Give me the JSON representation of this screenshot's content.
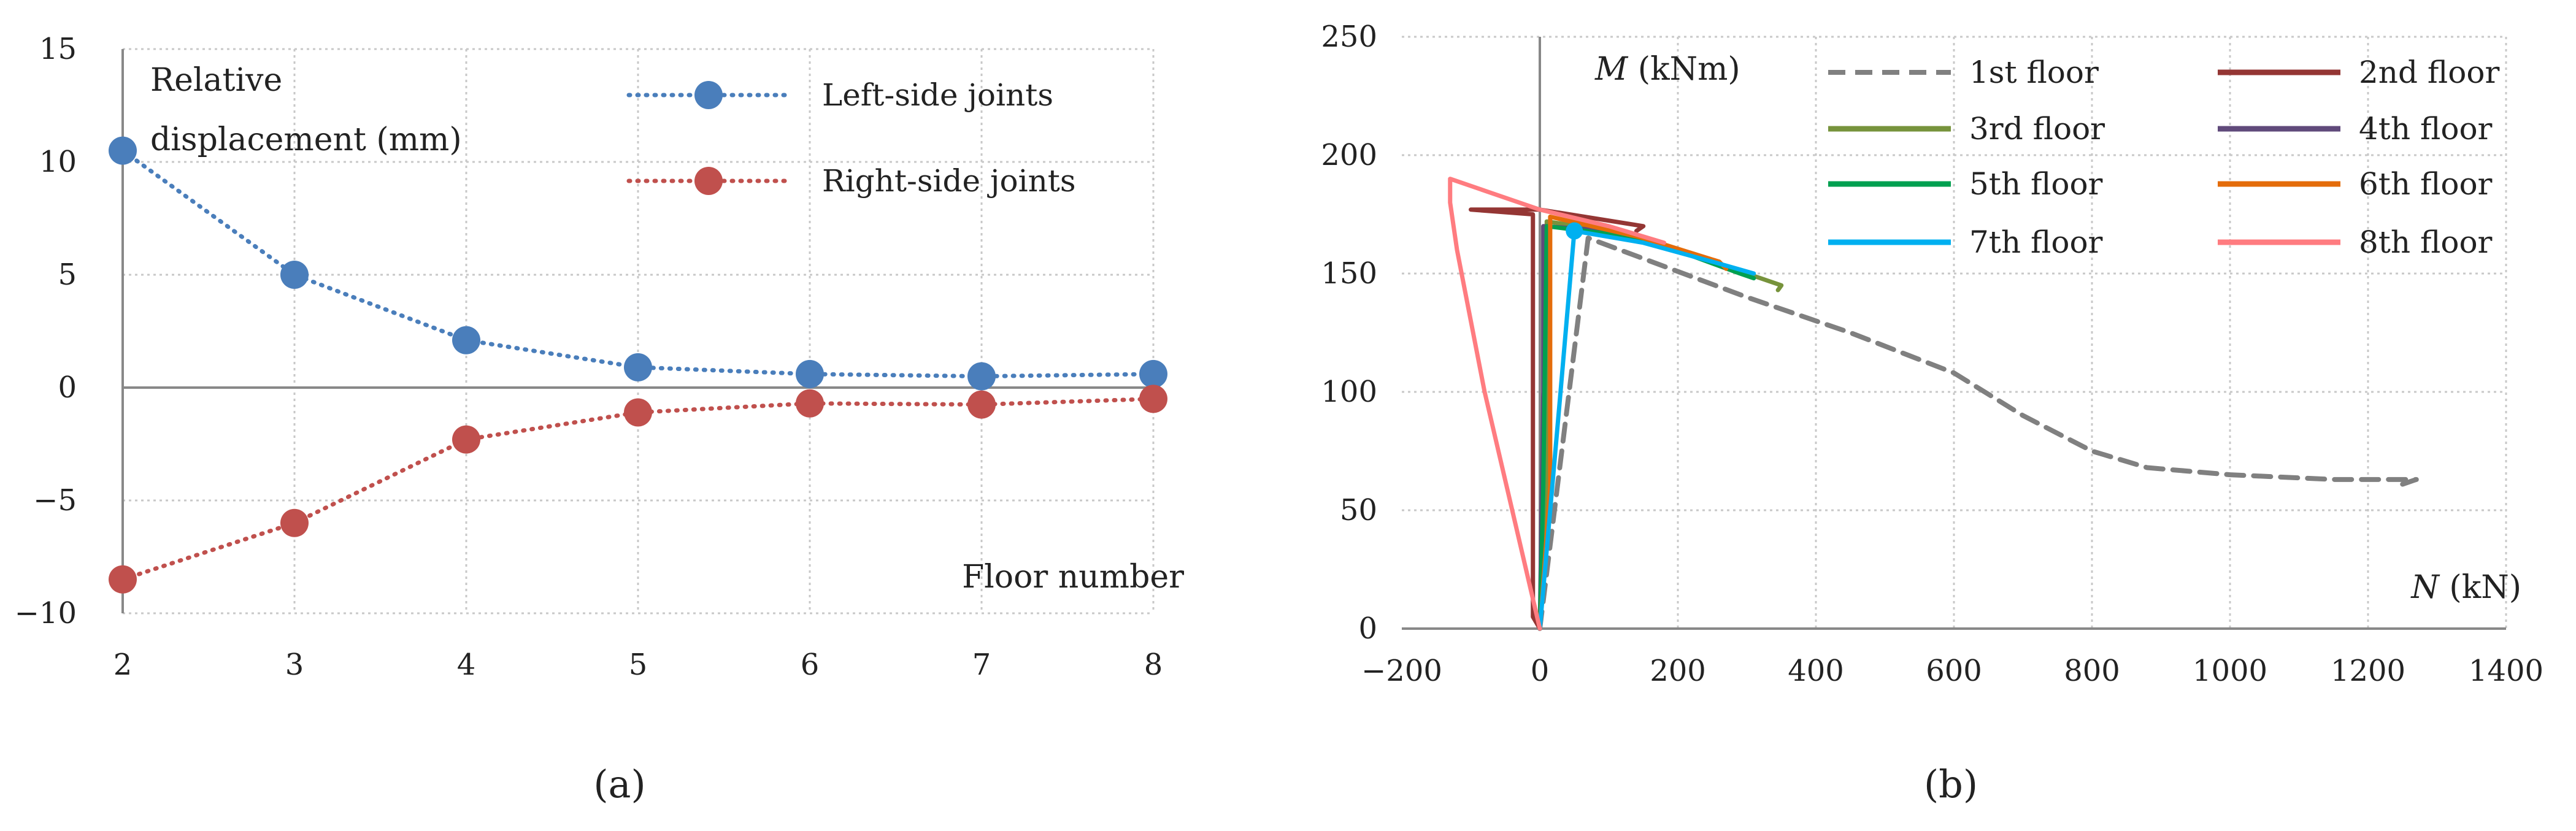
{
  "chart_data": [
    {
      "type": "line",
      "panel_label": "(a)",
      "ylabel": "Relative displacement (mm)",
      "ylabel_lines": [
        "Relative",
        "displacement (mm)"
      ],
      "xlabel": "Floor number",
      "categories": [
        2,
        3,
        4,
        5,
        6,
        7,
        8
      ],
      "x_tick_labels": [
        "2",
        "3",
        "4",
        "5",
        "6",
        "7",
        "8"
      ],
      "y_tick_labels": [
        "15",
        "10",
        "5",
        "0",
        "−5",
        "−10"
      ],
      "ylim": [
        -10,
        15
      ],
      "y_ticks": [
        15,
        10,
        5,
        0,
        -5,
        -10
      ],
      "grid": true,
      "line_style": "dotted with circle markers",
      "legend_placement": "top-right",
      "series": [
        {
          "name": "Left-side joints",
          "color": "#4a7ebb",
          "values": [
            10.5,
            5.0,
            2.1,
            0.9,
            0.6,
            0.5,
            0.6
          ]
        },
        {
          "name": "Right-side joints",
          "color": "#c0504d",
          "values": [
            -8.5,
            -6.0,
            -2.3,
            -1.1,
            -0.7,
            -0.75,
            -0.5
          ]
        }
      ]
    },
    {
      "type": "line",
      "panel_label": "(b)",
      "xlabel": "N (kN)",
      "ylabel": "M (kNm)",
      "xlabel_parts": {
        "symbol": "N",
        "unit": " (kN)"
      },
      "ylabel_parts": {
        "symbol": "M",
        "unit": " (kNm)"
      },
      "xlim": [
        -200,
        1400
      ],
      "ylim": [
        0,
        250
      ],
      "x_ticks": [
        -200,
        0,
        200,
        400,
        600,
        800,
        1000,
        1200,
        1400
      ],
      "x_tick_labels": [
        "−200",
        "0",
        "200",
        "400",
        "600",
        "800",
        "1000",
        "1200",
        "1400"
      ],
      "y_ticks": [
        0,
        50,
        100,
        150,
        200,
        250
      ],
      "y_tick_labels": [
        "0",
        "50",
        "100",
        "150",
        "200",
        "250"
      ],
      "grid": true,
      "legend_placement": "top-right",
      "series": [
        {
          "name": "1st floor",
          "color": "#808080",
          "dash": true,
          "points": [
            [
              0,
              0
            ],
            [
              70,
              165
            ],
            [
              300,
              140
            ],
            [
              450,
              125
            ],
            [
              600,
              108
            ],
            [
              700,
              90
            ],
            [
              800,
              75
            ],
            [
              880,
              68
            ],
            [
              1000,
              65
            ],
            [
              1150,
              63
            ],
            [
              1270,
              63
            ],
            [
              1250,
              61
            ]
          ]
        },
        {
          "name": "2nd floor",
          "color": "#943634",
          "points": [
            [
              0,
              0
            ],
            [
              -10,
              5
            ],
            [
              -10,
              175
            ],
            [
              -100,
              177
            ],
            [
              0,
              177
            ],
            [
              150,
              170
            ],
            [
              140,
              168
            ]
          ]
        },
        {
          "name": "3rd floor",
          "color": "#77933c",
          "points": [
            [
              0,
              0
            ],
            [
              10,
              60
            ],
            [
              10,
              172
            ],
            [
              100,
              168
            ],
            [
              250,
              155
            ],
            [
              350,
              145
            ],
            [
              345,
              143
            ]
          ]
        },
        {
          "name": "4th floor",
          "color": "#604a7b",
          "points": [
            [
              0,
              0
            ],
            [
              5,
              100
            ],
            [
              5,
              170
            ],
            [
              100,
              168
            ]
          ]
        },
        {
          "name": "5th floor",
          "color": "#00a050",
          "points": [
            [
              0,
              0
            ],
            [
              5,
              60
            ],
            [
              10,
              170
            ],
            [
              150,
              165
            ],
            [
              290,
              150
            ],
            [
              310,
              148
            ]
          ]
        },
        {
          "name": "6th floor",
          "color": "#e46c0a",
          "points": [
            [
              0,
              0
            ],
            [
              15,
              60
            ],
            [
              15,
              174
            ],
            [
              150,
              165
            ],
            [
              260,
              155
            ],
            [
              270,
              152
            ]
          ]
        },
        {
          "name": "7th floor",
          "color": "#00b0f0",
          "points": [
            [
              0,
              0
            ],
            [
              30,
              100
            ],
            [
              50,
              168
            ],
            [
              150,
              163
            ],
            [
              250,
              155
            ],
            [
              310,
              150
            ]
          ]
        },
        {
          "name": "8th floor",
          "color": "#ff7c80",
          "points": [
            [
              0,
              0
            ],
            [
              -80,
              100
            ],
            [
              -120,
              160
            ],
            [
              -130,
              180
            ],
            [
              -130,
              190
            ],
            [
              -80,
              185
            ],
            [
              0,
              177
            ],
            [
              100,
              170
            ],
            [
              180,
              163
            ]
          ]
        }
      ]
    }
  ]
}
